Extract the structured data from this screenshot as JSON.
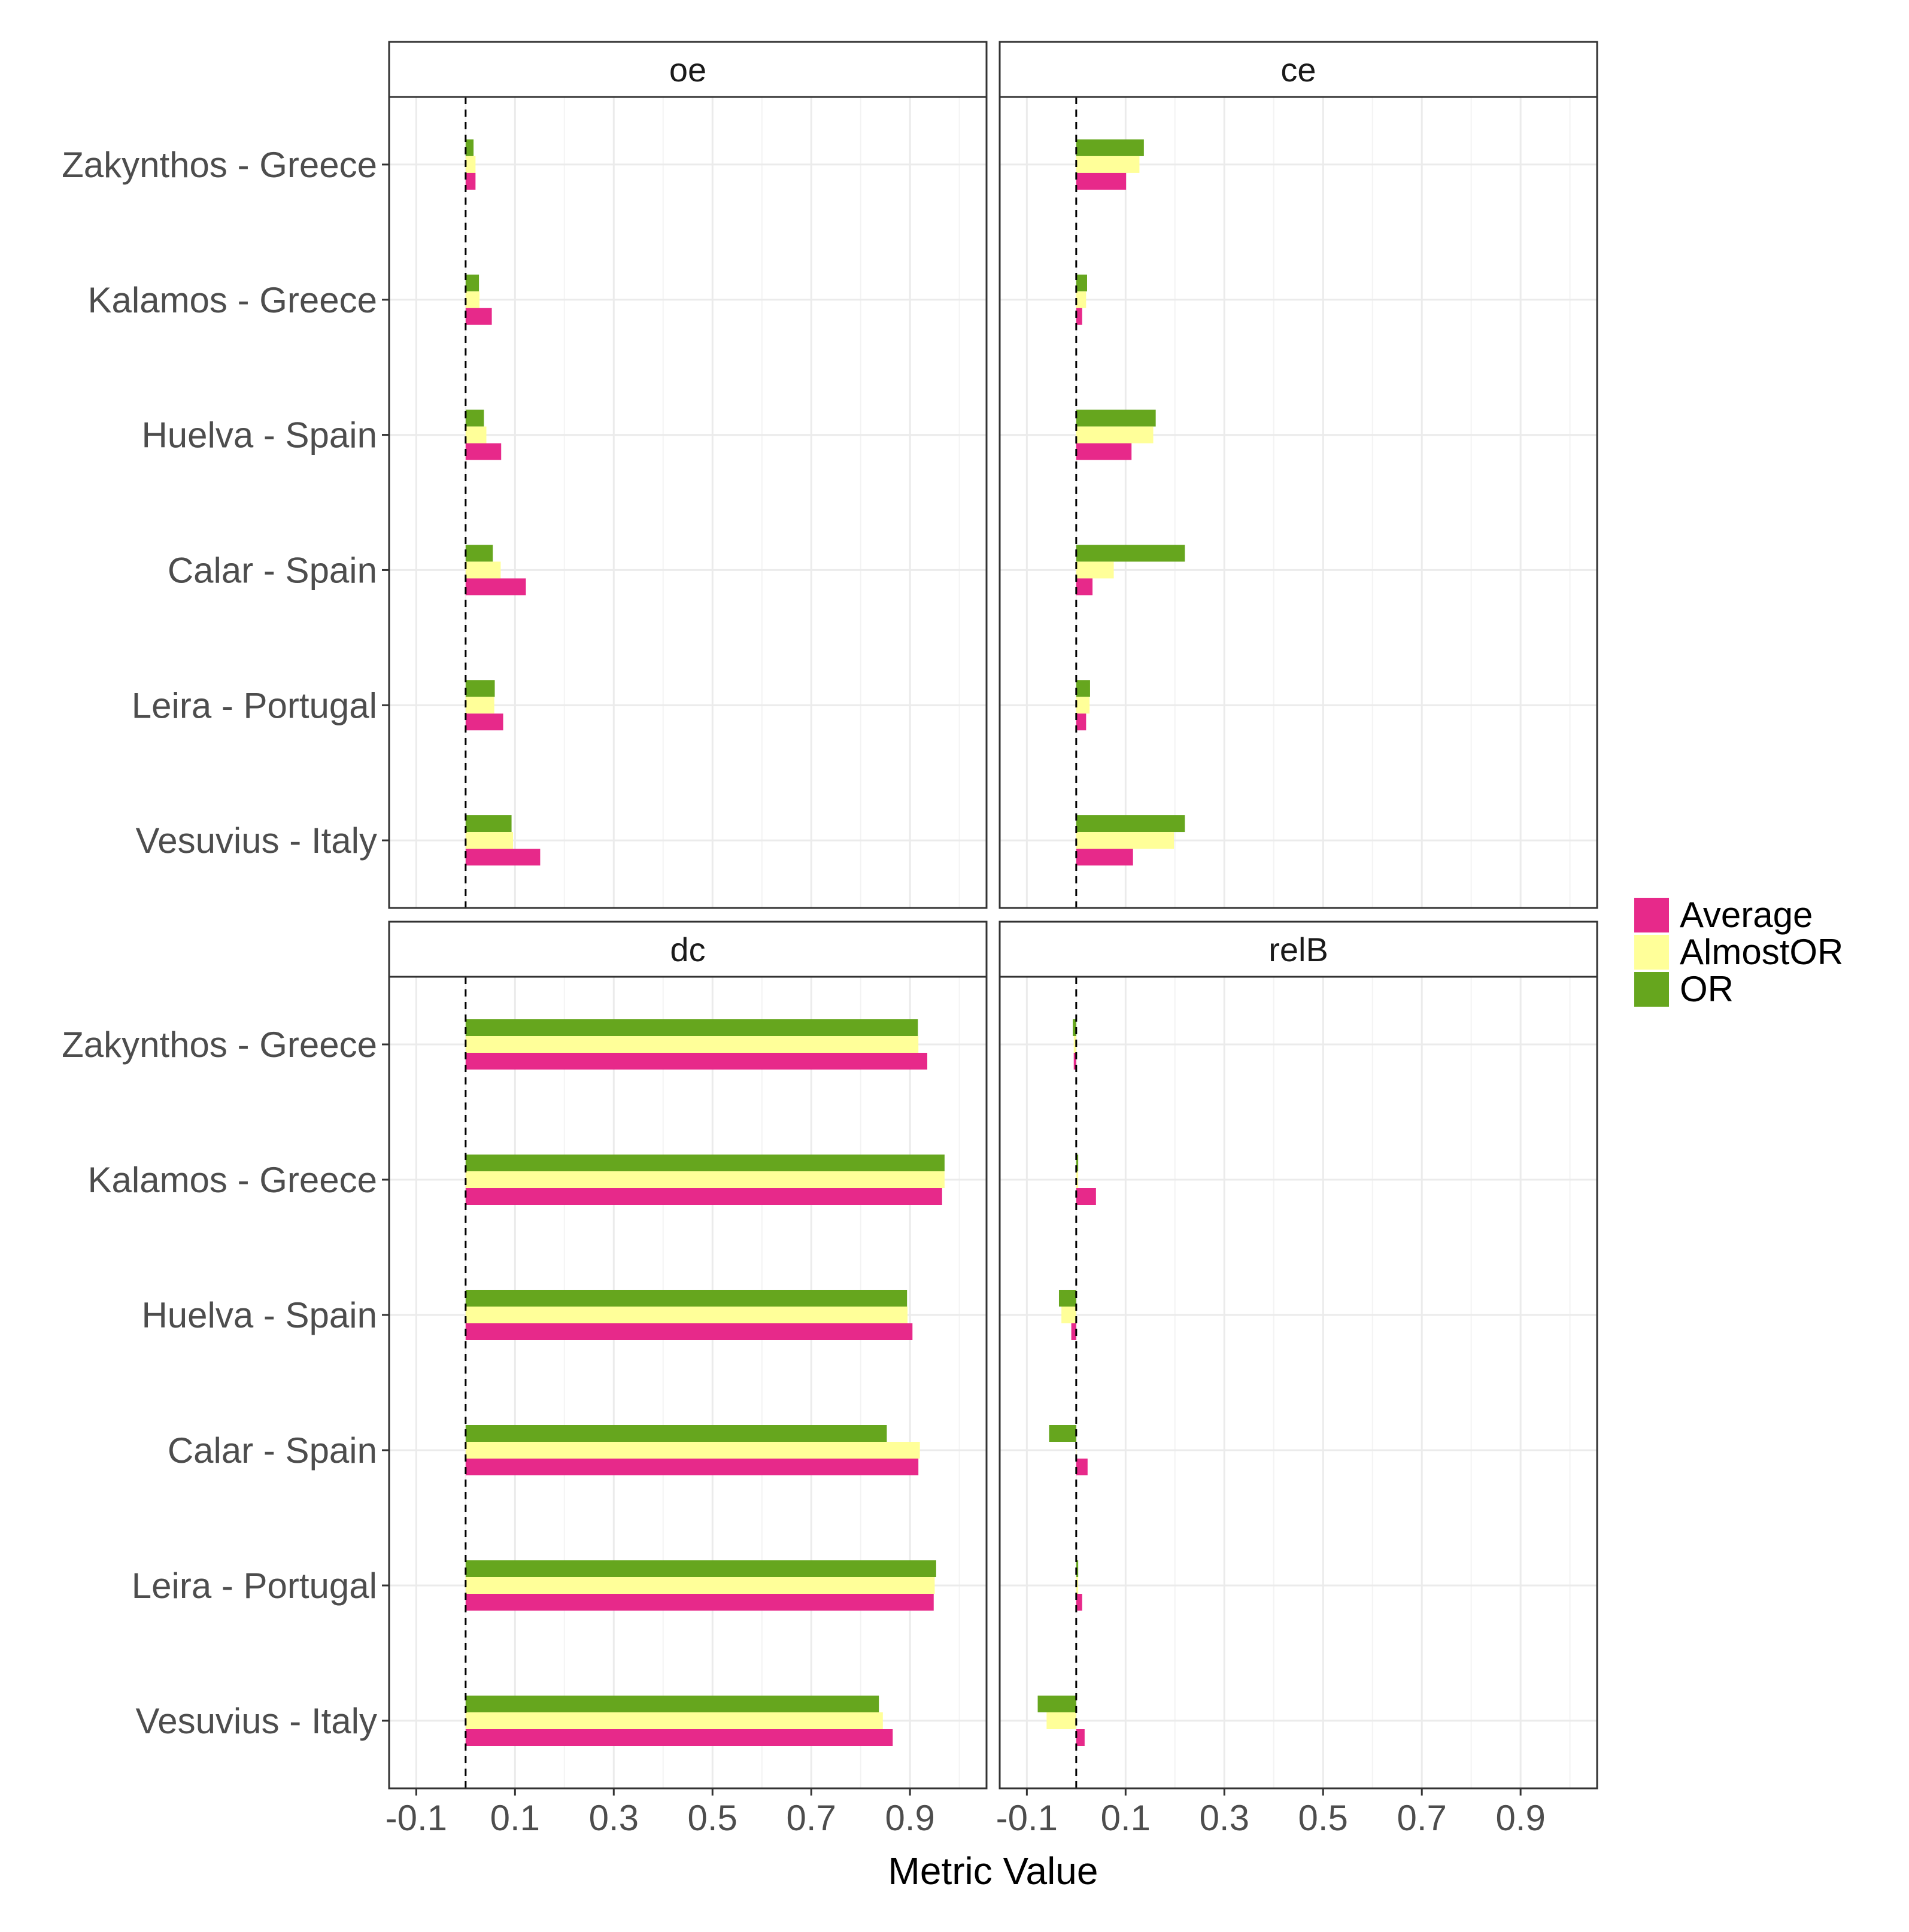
{
  "chart_data": {
    "type": "bar",
    "orientation": "horizontal",
    "facet_layout": "2x2",
    "xlabel": "Metric Value",
    "xlim": [
      -0.155,
      1.055
    ],
    "xticks": [
      -0.1,
      0.1,
      0.3,
      0.5,
      0.7,
      0.9
    ],
    "xtick_labels": [
      "-0.1",
      "0.1",
      "0.3",
      "0.5",
      "0.7",
      "0.9"
    ],
    "reference_line": 0,
    "grid": true,
    "legend_position": "right",
    "categories": [
      "Zakynthos - Greece",
      "Kalamos - Greece",
      "Huelva - Spain",
      "Calar - Spain",
      "Leira - Portugal",
      "Vesuvius - Italy"
    ],
    "legend": [
      {
        "name": "Average",
        "color": "#E7298A"
      },
      {
        "name": "AlmostOR",
        "color": "#FFFF99"
      },
      {
        "name": "OR",
        "color": "#66A61E"
      }
    ],
    "panels": [
      {
        "title": "oe",
        "series": [
          {
            "name": "Average",
            "values": [
              0.02,
              0.053,
              0.072,
              0.122,
              0.076,
              0.151
            ]
          },
          {
            "name": "AlmostOR",
            "values": [
              0.02,
              0.028,
              0.042,
              0.071,
              0.058,
              0.096
            ]
          },
          {
            "name": "OR",
            "values": [
              0.016,
              0.027,
              0.037,
              0.055,
              0.059,
              0.093
            ]
          }
        ]
      },
      {
        "title": "ce",
        "series": [
          {
            "name": "Average",
            "values": [
              0.101,
              0.012,
              0.112,
              0.033,
              0.02,
              0.115
            ]
          },
          {
            "name": "AlmostOR",
            "values": [
              0.128,
              0.02,
              0.156,
              0.076,
              0.027,
              0.198
            ]
          },
          {
            "name": "OR",
            "values": [
              0.137,
              0.022,
              0.161,
              0.22,
              0.028,
              0.22
            ]
          }
        ]
      },
      {
        "title": "dc",
        "series": [
          {
            "name": "Average",
            "values": [
              0.935,
              0.965,
              0.905,
              0.917,
              0.948,
              0.865
            ]
          },
          {
            "name": "AlmostOR",
            "values": [
              0.917,
              0.97,
              0.895,
              0.92,
              0.95,
              0.845
            ]
          },
          {
            "name": "OR",
            "values": [
              0.916,
              0.97,
              0.894,
              0.853,
              0.953,
              0.837
            ]
          }
        ]
      },
      {
        "title": "relB",
        "series": [
          {
            "name": "Average",
            "values": [
              -0.005,
              0.04,
              -0.01,
              0.023,
              0.012,
              0.017
            ]
          },
          {
            "name": "AlmostOR",
            "values": [
              -0.005,
              0.004,
              -0.03,
              0.0,
              0.004,
              -0.06
            ]
          },
          {
            "name": "OR",
            "values": [
              -0.007,
              0.004,
              -0.035,
              -0.055,
              0.004,
              -0.078
            ]
          }
        ]
      }
    ]
  }
}
